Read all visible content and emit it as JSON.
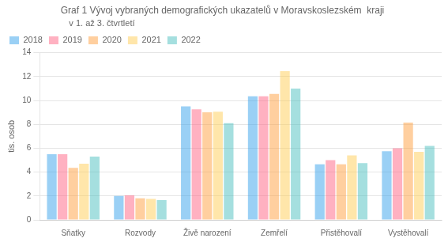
{
  "chart_data": {
    "type": "bar",
    "title": "Graf 1 Vývoj vybraných demografických ukazatelů v Moravskoslezském  kraji",
    "subtitle": "v 1. až 3. čtvrtletí",
    "ylabel": "tis. osob",
    "categories": [
      "Sňatky",
      "Rozvody",
      "Živě narození",
      "Zemřelí",
      "Přistěhovalí",
      "Vystěhovalí"
    ],
    "series": [
      {
        "name": "2018",
        "values": [
          5.5,
          2.0,
          9.5,
          10.35,
          4.65,
          5.75
        ]
      },
      {
        "name": "2019",
        "values": [
          5.5,
          2.05,
          9.25,
          10.35,
          5.0,
          6.0
        ]
      },
      {
        "name": "2020",
        "values": [
          4.35,
          1.8,
          9.0,
          10.55,
          4.65,
          8.15
        ]
      },
      {
        "name": "2021",
        "values": [
          4.7,
          1.75,
          9.05,
          12.45,
          5.4,
          5.7
        ]
      },
      {
        "name": "2022",
        "values": [
          5.3,
          1.65,
          8.1,
          11.0,
          4.75,
          6.2
        ]
      }
    ],
    "ylim": [
      0,
      14
    ],
    "yticks": [
      0,
      2,
      4,
      6,
      8,
      10,
      12,
      14
    ],
    "grid": true,
    "legend": "upper left"
  }
}
